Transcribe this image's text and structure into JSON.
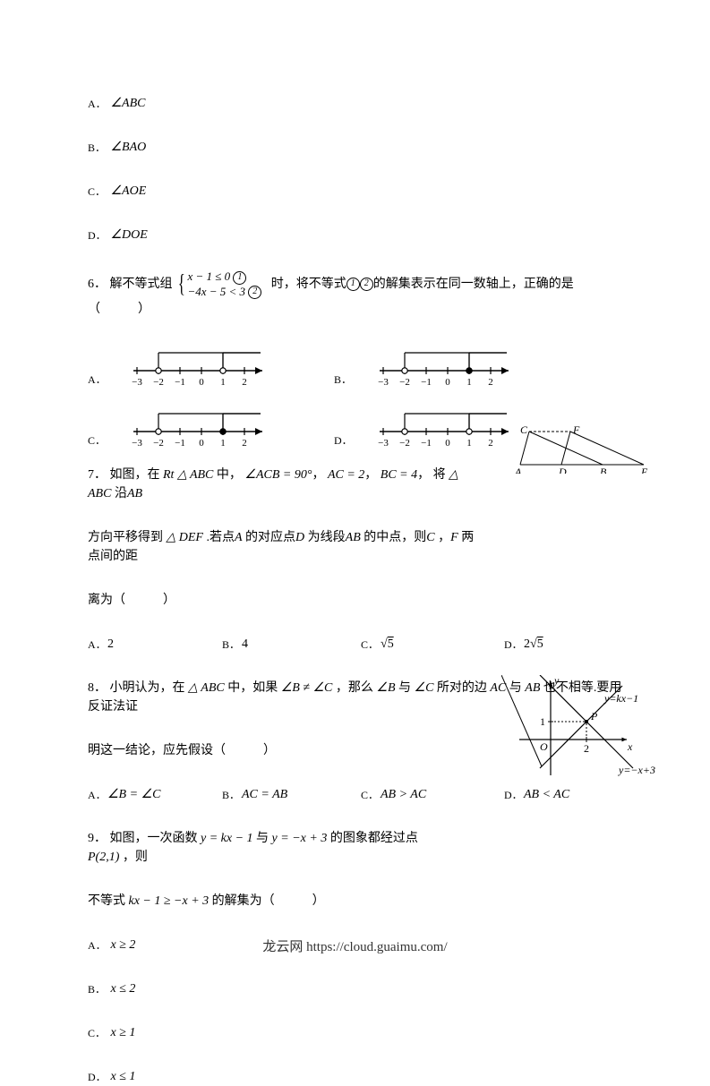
{
  "q5_options": {
    "A": "∠ABC",
    "B": "∠BAO",
    "C": "∠AOE",
    "D": "∠DOE"
  },
  "q6": {
    "num": "6．",
    "stem_pre": "解不等式组",
    "system_line1_a": "x − 1 ≤ 0",
    "system_line2_a": "−4x − 5 < 3",
    "stem_mid": "时，将不等式",
    "stem_post": "的解集表示在同一数轴上，正确的是（　　　）",
    "circled1": "①",
    "circled2": "②",
    "number_line": {
      "ticks": [
        "−3",
        "−2",
        "−1",
        "0",
        "1",
        "2"
      ],
      "options": {
        "A": {
          "left": {
            "pos": -2,
            "filled": false
          },
          "right": {
            "pos": 1,
            "filled": false
          }
        },
        "B": {
          "left": {
            "pos": -2,
            "filled": false
          },
          "right": {
            "pos": 1,
            "filled": true
          }
        },
        "C": {
          "left": {
            "pos": -2,
            "filled": false
          },
          "right": {
            "pos": 1,
            "filled": true
          }
        },
        "D": {
          "left": {
            "pos": -2,
            "filled": false
          },
          "right": {
            "pos": 1,
            "filled": false
          }
        }
      }
    }
  },
  "q7": {
    "num": "7．",
    "stem1_a": "如图，在",
    "stem1_b": "中，",
    "rt": "Rt △ ABC",
    "angle": "∠ACB = 90°",
    "comma": "，",
    "ac": "AC = 2",
    "bc": "BC = 4",
    "stem1_c": "将",
    "tri": "△ ABC",
    "stem1_d": "沿",
    "ab": "AB",
    "stem2_a": "方向平移得到",
    "def": "△ DEF",
    "stem2_b": ".若点",
    "ptA": "A",
    "stem2_c": "的对应点",
    "ptD": "D",
    "stem2_d": "为线段",
    "ab2": "AB",
    "stem2_e": "的中点，则",
    "ptC": "C",
    "stem2_f": "，",
    "ptF": "F",
    "stem2_g": "两点间的距",
    "stem3": "离为（　　　）",
    "options": {
      "A": "2",
      "B": "4",
      "C": "√5",
      "D": "2√5"
    },
    "opt_widths": [
      150,
      155,
      160,
      0
    ],
    "fig": {
      "labels": {
        "C": "C",
        "F": "F",
        "A": "A",
        "D": "D",
        "B": "B",
        "E": "E"
      }
    }
  },
  "q8": {
    "num": "8．",
    "stem1_a": "小明认为，在",
    "tri": "△ ABC",
    "stem1_b": "中，如果",
    "neq": "∠B ≠ ∠C",
    "stem1_c": "，那么",
    "angB": "∠B",
    "stem1_d": "与",
    "angC": "∠C",
    "stem1_e": "所对的边",
    "ac": "AC",
    "stem1_f": "与",
    "ab": "AB",
    "stem1_g": "也不相等.要用反证法证",
    "stem2": "明这一结论，应先假设（　　　）",
    "options": {
      "A": "∠B = ∠C",
      "B": "AC = AB",
      "C": "AB > AC",
      "D": "AB < AC"
    },
    "opt_widths": [
      150,
      155,
      160,
      0
    ]
  },
  "q9": {
    "num": "9．",
    "stem1_a": "如图，一次函数",
    "f1": "y = kx − 1",
    "stem1_b": "与",
    "f2": "y = −x + 3",
    "stem1_c": "的图象都经过点",
    "pt": "P(2,1)",
    "stem1_d": "，则",
    "stem2_a": "不等式",
    "ineq": "kx − 1 ≥ −x + 3",
    "stem2_b": "的解集为（　　　）",
    "options": {
      "A": "x ≥ 2",
      "B": "x ≤ 2",
      "C": "x ≥ 1",
      "D": "x ≤ 1"
    },
    "fig": {
      "labels": {
        "y": "y",
        "x": "x",
        "O": "O",
        "P": "P",
        "one": "1",
        "two": "2",
        "l1": "y=kx−1",
        "l2": "y=−x+3"
      }
    }
  },
  "footer_text": "龙云网 https://cloud.guaimu.com/"
}
